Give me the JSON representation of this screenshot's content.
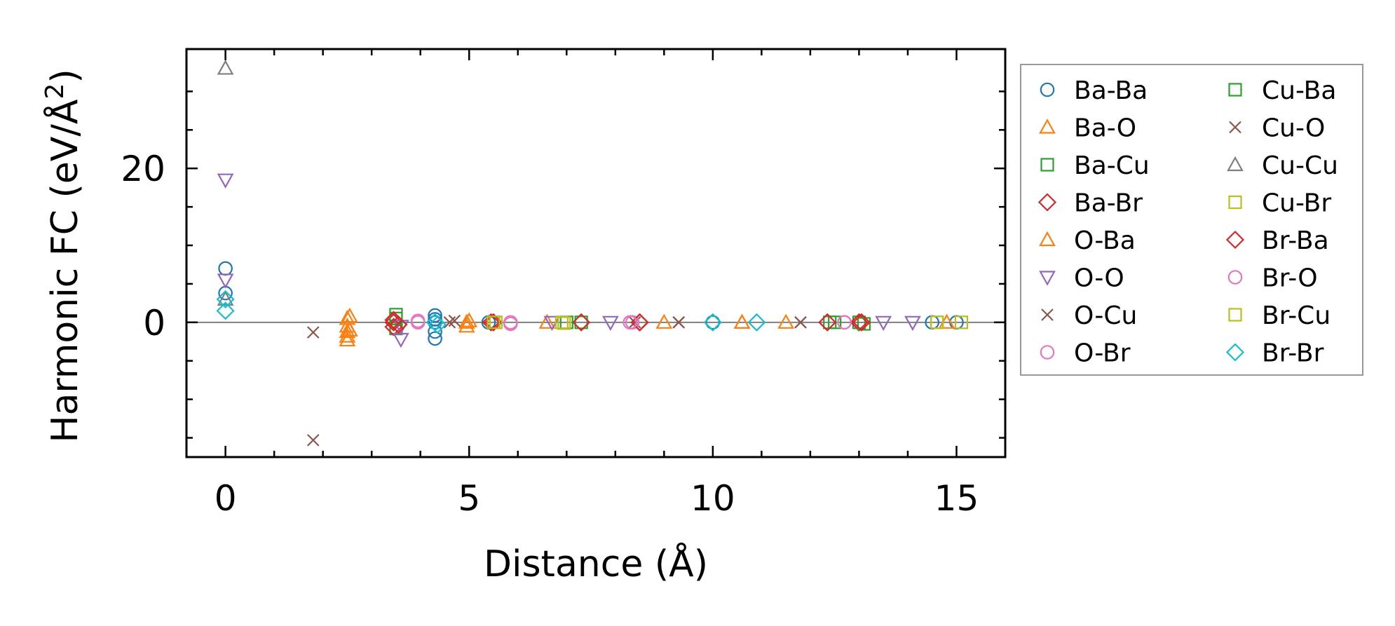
{
  "chart_data": {
    "type": "scatter",
    "xlabel": "Distance (Å)",
    "ylabel": "Harmonic FC (eV/Å²)",
    "ylabel_main": "Harmonic FC (eV/Å",
    "ylabel_sup": "2",
    "ylabel_close": ")",
    "xlim": [
      -0.8,
      16.0
    ],
    "ylim": [
      -17.5,
      35.5
    ],
    "x_ticks": [
      0,
      5,
      10,
      15
    ],
    "x_tick_labels": [
      "0",
      "5",
      "10",
      "15"
    ],
    "x_minor_ticks": [
      1,
      2,
      3,
      4,
      6,
      7,
      8,
      9,
      11,
      12,
      13,
      14
    ],
    "y_ticks": [
      0,
      20
    ],
    "y_tick_labels": [
      "0",
      "20"
    ],
    "y_minor_ticks": [
      -15,
      -10,
      -5,
      5,
      10,
      15,
      25,
      30
    ],
    "zero_line": 0,
    "legend_position": "right, outside axes, two columns",
    "series": [
      {
        "name": "Ba-Ba",
        "marker": "circle",
        "color": "#1f77b4",
        "x": [
          0,
          0,
          4.3,
          4.3,
          4.3,
          4.3,
          4.3,
          5.4,
          10.0,
          14.5,
          15.0
        ],
        "y": [
          7.0,
          3.8,
          0.9,
          0.0,
          -1.2,
          -2.1,
          0.4,
          0.0,
          0.0,
          0.0,
          0.0
        ]
      },
      {
        "name": "Ba-O",
        "marker": "triangle-up",
        "color": "#ff7f0e",
        "x": [
          2.5,
          2.5,
          2.5,
          2.5,
          2.5,
          4.95,
          4.95,
          6.6,
          9.0,
          10.6,
          11.5,
          14.8
        ],
        "y": [
          0.5,
          -0.5,
          -1.2,
          -1.8,
          -2.3,
          0.0,
          -0.5,
          0.0,
          0.0,
          0.0,
          0.0,
          0.0
        ]
      },
      {
        "name": "Ba-Cu",
        "marker": "square",
        "color": "#2ca02c",
        "x": [
          3.5,
          3.5,
          5.5,
          7.3,
          12.4,
          13.0
        ],
        "y": [
          1.0,
          -0.8,
          0.0,
          0.0,
          0.0,
          0.0
        ]
      },
      {
        "name": "Ba-Br",
        "marker": "diamond",
        "color": "#d62728",
        "x": [
          3.45,
          3.45,
          5.5,
          7.3,
          8.5,
          13.0
        ],
        "y": [
          0.0,
          -0.6,
          0.0,
          0.0,
          0.0,
          0.0
        ]
      },
      {
        "name": "O-Ba",
        "marker": "triangle-up",
        "color": "#ff7f0e",
        "x": [
          2.55,
          2.55,
          5.0,
          10.6
        ],
        "y": [
          0.8,
          -1.0,
          0.2,
          0.0
        ]
      },
      {
        "name": "O-O",
        "marker": "triangle-down",
        "color": "#9467bd",
        "x": [
          0,
          0,
          3.6,
          3.6,
          6.7,
          7.9,
          13.5,
          14.1
        ],
        "y": [
          18.5,
          5.5,
          -0.5,
          -2.2,
          0.0,
          0.0,
          0.0,
          0.0
        ]
      },
      {
        "name": "O-Cu",
        "marker": "x",
        "color": "#8c564b",
        "x": [
          1.8,
          1.8,
          4.6,
          8.4,
          9.3,
          11.8
        ],
        "y": [
          -1.3,
          -15.3,
          0.0,
          0.0,
          0.0,
          0.0
        ]
      },
      {
        "name": "O-Br",
        "marker": "circle",
        "color": "#e377c2",
        "x": [
          3.95,
          5.85,
          8.35,
          12.7
        ],
        "y": [
          0.0,
          -0.2,
          0.0,
          0.0
        ]
      },
      {
        "name": "Cu-Ba",
        "marker": "square",
        "color": "#2ca02c",
        "x": [
          3.5,
          5.5,
          7.0,
          12.5,
          13.1
        ],
        "y": [
          0.5,
          0.0,
          0.0,
          0.0,
          -0.2
        ]
      },
      {
        "name": "Cu-O",
        "marker": "x",
        "color": "#8c564b",
        "x": [
          4.7,
          9.3,
          11.8
        ],
        "y": [
          0.2,
          0.0,
          0.0
        ]
      },
      {
        "name": "Cu-Cu",
        "marker": "triangle-up",
        "color": "#7f7f7f",
        "x": [
          0,
          0
        ],
        "y": [
          33.0,
          3.0
        ]
      },
      {
        "name": "Cu-Br",
        "marker": "square",
        "color": "#bcbd22",
        "x": [
          5.55,
          6.9,
          14.6,
          15.1
        ],
        "y": [
          0.0,
          0.0,
          0.0,
          0.0
        ]
      },
      {
        "name": "Br-Ba",
        "marker": "diamond",
        "color": "#d62728",
        "x": [
          3.45,
          3.55,
          5.45,
          8.5,
          12.35,
          13.05
        ],
        "y": [
          0.3,
          -0.3,
          0.0,
          0.0,
          0.0,
          0.0
        ]
      },
      {
        "name": "Br-O",
        "marker": "circle",
        "color": "#e377c2",
        "x": [
          3.95,
          5.85,
          8.3,
          12.7
        ],
        "y": [
          0.2,
          0.0,
          0.0,
          0.0
        ]
      },
      {
        "name": "Br-Cu",
        "marker": "square",
        "color": "#bcbd22",
        "x": [
          5.5,
          6.95,
          14.6
        ],
        "y": [
          0.0,
          -0.1,
          0.0
        ]
      },
      {
        "name": "Br-Br",
        "marker": "diamond",
        "color": "#17becf",
        "x": [
          0,
          0,
          4.3,
          4.35,
          10.0,
          10.9
        ],
        "y": [
          1.5,
          3.0,
          0.0,
          -0.3,
          0.0,
          0.0
        ]
      }
    ]
  }
}
